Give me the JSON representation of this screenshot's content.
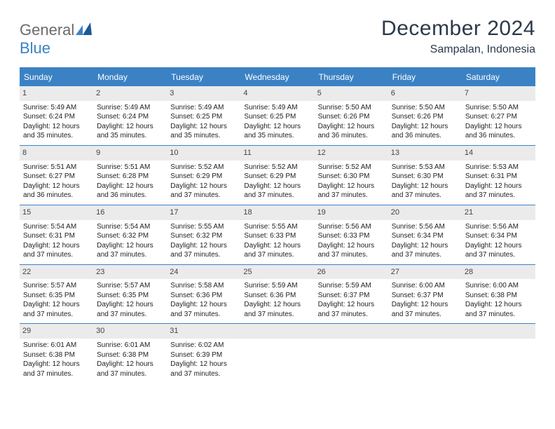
{
  "logo": {
    "part1": "General",
    "part2": "Blue"
  },
  "title": "December 2024",
  "location": "Sampalan, Indonesia",
  "daynames": [
    "Sunday",
    "Monday",
    "Tuesday",
    "Wednesday",
    "Thursday",
    "Friday",
    "Saturday"
  ],
  "labels": {
    "sunrise": "Sunrise: ",
    "sunset": "Sunset: ",
    "daylight": "Daylight: "
  },
  "colors": {
    "accent": "#3b82c4",
    "headerText": "#2b3a4a",
    "bar": "#ebebeb"
  },
  "days": [
    {
      "n": "1",
      "sr": "5:49 AM",
      "ss": "6:24 PM",
      "dl": "12 hours and 35 minutes."
    },
    {
      "n": "2",
      "sr": "5:49 AM",
      "ss": "6:24 PM",
      "dl": "12 hours and 35 minutes."
    },
    {
      "n": "3",
      "sr": "5:49 AM",
      "ss": "6:25 PM",
      "dl": "12 hours and 35 minutes."
    },
    {
      "n": "4",
      "sr": "5:49 AM",
      "ss": "6:25 PM",
      "dl": "12 hours and 35 minutes."
    },
    {
      "n": "5",
      "sr": "5:50 AM",
      "ss": "6:26 PM",
      "dl": "12 hours and 36 minutes."
    },
    {
      "n": "6",
      "sr": "5:50 AM",
      "ss": "6:26 PM",
      "dl": "12 hours and 36 minutes."
    },
    {
      "n": "7",
      "sr": "5:50 AM",
      "ss": "6:27 PM",
      "dl": "12 hours and 36 minutes."
    },
    {
      "n": "8",
      "sr": "5:51 AM",
      "ss": "6:27 PM",
      "dl": "12 hours and 36 minutes."
    },
    {
      "n": "9",
      "sr": "5:51 AM",
      "ss": "6:28 PM",
      "dl": "12 hours and 36 minutes."
    },
    {
      "n": "10",
      "sr": "5:52 AM",
      "ss": "6:29 PM",
      "dl": "12 hours and 37 minutes."
    },
    {
      "n": "11",
      "sr": "5:52 AM",
      "ss": "6:29 PM",
      "dl": "12 hours and 37 minutes."
    },
    {
      "n": "12",
      "sr": "5:52 AM",
      "ss": "6:30 PM",
      "dl": "12 hours and 37 minutes."
    },
    {
      "n": "13",
      "sr": "5:53 AM",
      "ss": "6:30 PM",
      "dl": "12 hours and 37 minutes."
    },
    {
      "n": "14",
      "sr": "5:53 AM",
      "ss": "6:31 PM",
      "dl": "12 hours and 37 minutes."
    },
    {
      "n": "15",
      "sr": "5:54 AM",
      "ss": "6:31 PM",
      "dl": "12 hours and 37 minutes."
    },
    {
      "n": "16",
      "sr": "5:54 AM",
      "ss": "6:32 PM",
      "dl": "12 hours and 37 minutes."
    },
    {
      "n": "17",
      "sr": "5:55 AM",
      "ss": "6:32 PM",
      "dl": "12 hours and 37 minutes."
    },
    {
      "n": "18",
      "sr": "5:55 AM",
      "ss": "6:33 PM",
      "dl": "12 hours and 37 minutes."
    },
    {
      "n": "19",
      "sr": "5:56 AM",
      "ss": "6:33 PM",
      "dl": "12 hours and 37 minutes."
    },
    {
      "n": "20",
      "sr": "5:56 AM",
      "ss": "6:34 PM",
      "dl": "12 hours and 37 minutes."
    },
    {
      "n": "21",
      "sr": "5:56 AM",
      "ss": "6:34 PM",
      "dl": "12 hours and 37 minutes."
    },
    {
      "n": "22",
      "sr": "5:57 AM",
      "ss": "6:35 PM",
      "dl": "12 hours and 37 minutes."
    },
    {
      "n": "23",
      "sr": "5:57 AM",
      "ss": "6:35 PM",
      "dl": "12 hours and 37 minutes."
    },
    {
      "n": "24",
      "sr": "5:58 AM",
      "ss": "6:36 PM",
      "dl": "12 hours and 37 minutes."
    },
    {
      "n": "25",
      "sr": "5:59 AM",
      "ss": "6:36 PM",
      "dl": "12 hours and 37 minutes."
    },
    {
      "n": "26",
      "sr": "5:59 AM",
      "ss": "6:37 PM",
      "dl": "12 hours and 37 minutes."
    },
    {
      "n": "27",
      "sr": "6:00 AM",
      "ss": "6:37 PM",
      "dl": "12 hours and 37 minutes."
    },
    {
      "n": "28",
      "sr": "6:00 AM",
      "ss": "6:38 PM",
      "dl": "12 hours and 37 minutes."
    },
    {
      "n": "29",
      "sr": "6:01 AM",
      "ss": "6:38 PM",
      "dl": "12 hours and 37 minutes."
    },
    {
      "n": "30",
      "sr": "6:01 AM",
      "ss": "6:38 PM",
      "dl": "12 hours and 37 minutes."
    },
    {
      "n": "31",
      "sr": "6:02 AM",
      "ss": "6:39 PM",
      "dl": "12 hours and 37 minutes."
    }
  ]
}
